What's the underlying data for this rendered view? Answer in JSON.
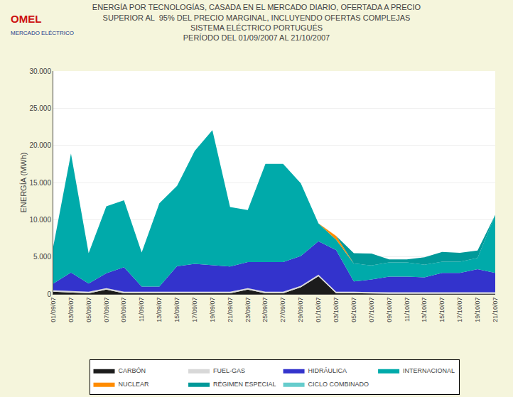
{
  "chart_data": {
    "type": "area",
    "stacked": true,
    "grid": true,
    "title": "ENERGÍA POR TECNOLOGÍAS, CASADA EN EL MERCADO DIARIO, OFERTADA A PRECIO\nSUPERIOR AL  95% DEL PRECIO MARGINAL, INCLUYENDO OFERTAS COMPLEJAS\nSISTEMA ELÉCTRICO PORTUGUÉS\nPERÍODO DEL 01/09/2007 AL 21/10/2007",
    "annotations": [
      "OMEL",
      "MERCADO ELÉCTRICO"
    ],
    "ylabel": "ENERGÍA (MWh)",
    "ylim": [
      0,
      30000
    ],
    "yticks": [
      0,
      {
        "value": 5000,
        "label": "5.000"
      },
      {
        "value": 10000,
        "label": "10.000"
      },
      {
        "value": 15000,
        "label": "15.000"
      },
      {
        "value": 20000,
        "label": "20.000"
      },
      {
        "value": 25000,
        "label": "25.000"
      },
      {
        "value": 30000,
        "label": "30.000"
      }
    ],
    "categories": [
      "01/09/07",
      "03/09/07",
      "05/09/07",
      "07/09/07",
      "09/09/07",
      "11/09/07",
      "13/09/07",
      "15/09/07",
      "17/09/07",
      "19/09/07",
      "21/09/07",
      "23/09/07",
      "25/09/07",
      "27/09/07",
      "29/09/07",
      "01/10/07",
      "03/10/07",
      "05/10/07",
      "07/10/07",
      "09/10/07",
      "11/10/07",
      "13/10/07",
      "15/10/07",
      "17/10/07",
      "19/10/07",
      "21/10/07"
    ],
    "legend": "bottom",
    "series": [
      {
        "name": "CARBÓN",
        "color": "#1C1C1C",
        "values": [
          300,
          200,
          100,
          600,
          100,
          100,
          100,
          150,
          150,
          150,
          100,
          600,
          100,
          100,
          900,
          2400,
          100,
          100,
          50,
          50,
          50,
          50,
          50,
          50,
          50,
          50
        ]
      },
      {
        "name": "FUEL-GAS",
        "color": "#D8D8D8",
        "values": [
          200,
          200,
          200,
          200,
          200,
          200,
          200,
          200,
          200,
          200,
          200,
          200,
          200,
          200,
          200,
          200,
          200,
          200,
          200,
          200,
          200,
          200,
          200,
          200,
          200,
          200
        ]
      },
      {
        "name": "HIDRÁULICA",
        "color": "#3333CC",
        "values": [
          900,
          2500,
          1100,
          2000,
          3300,
          700,
          700,
          3400,
          3700,
          3500,
          3400,
          3500,
          4000,
          4000,
          4000,
          4500,
          5600,
          1400,
          1700,
          2100,
          2100,
          2000,
          2600,
          2600,
          3100,
          2600
        ]
      },
      {
        "name": "INTERNACIONAL",
        "color": "#00AAAA",
        "values": [
          5000,
          16000,
          4100,
          9000,
          9000,
          4600,
          11200,
          10800,
          15200,
          18200,
          8000,
          7000,
          13200,
          13200,
          9800,
          2400,
          1400,
          2400,
          1900,
          1900,
          1900,
          1700,
          1500,
          1500,
          1500,
          7800
        ]
      },
      {
        "name": "NUCLEAR",
        "color": "#FF8C00",
        "values": [
          0,
          0,
          0,
          0,
          0,
          0,
          0,
          0,
          0,
          0,
          0,
          0,
          0,
          0,
          0,
          0,
          500,
          0,
          0,
          0,
          0,
          0,
          0,
          0,
          0,
          0
        ]
      },
      {
        "name": "RÉGIMEN ESPECIAL",
        "color": "#009999",
        "values": [
          0,
          0,
          0,
          0,
          0,
          0,
          0,
          0,
          0,
          0,
          0,
          0,
          0,
          0,
          0,
          0,
          0,
          1400,
          1600,
          400,
          400,
          1000,
          1300,
          1200,
          1000,
          0
        ]
      },
      {
        "name": "CICLO COMBINADO",
        "color": "#66CCCC",
        "values": [
          0,
          0,
          0,
          0,
          0,
          0,
          0,
          0,
          0,
          0,
          0,
          0,
          0,
          0,
          0,
          0,
          0,
          0,
          0,
          0,
          0,
          0,
          0,
          0,
          0,
          0
        ]
      }
    ]
  }
}
